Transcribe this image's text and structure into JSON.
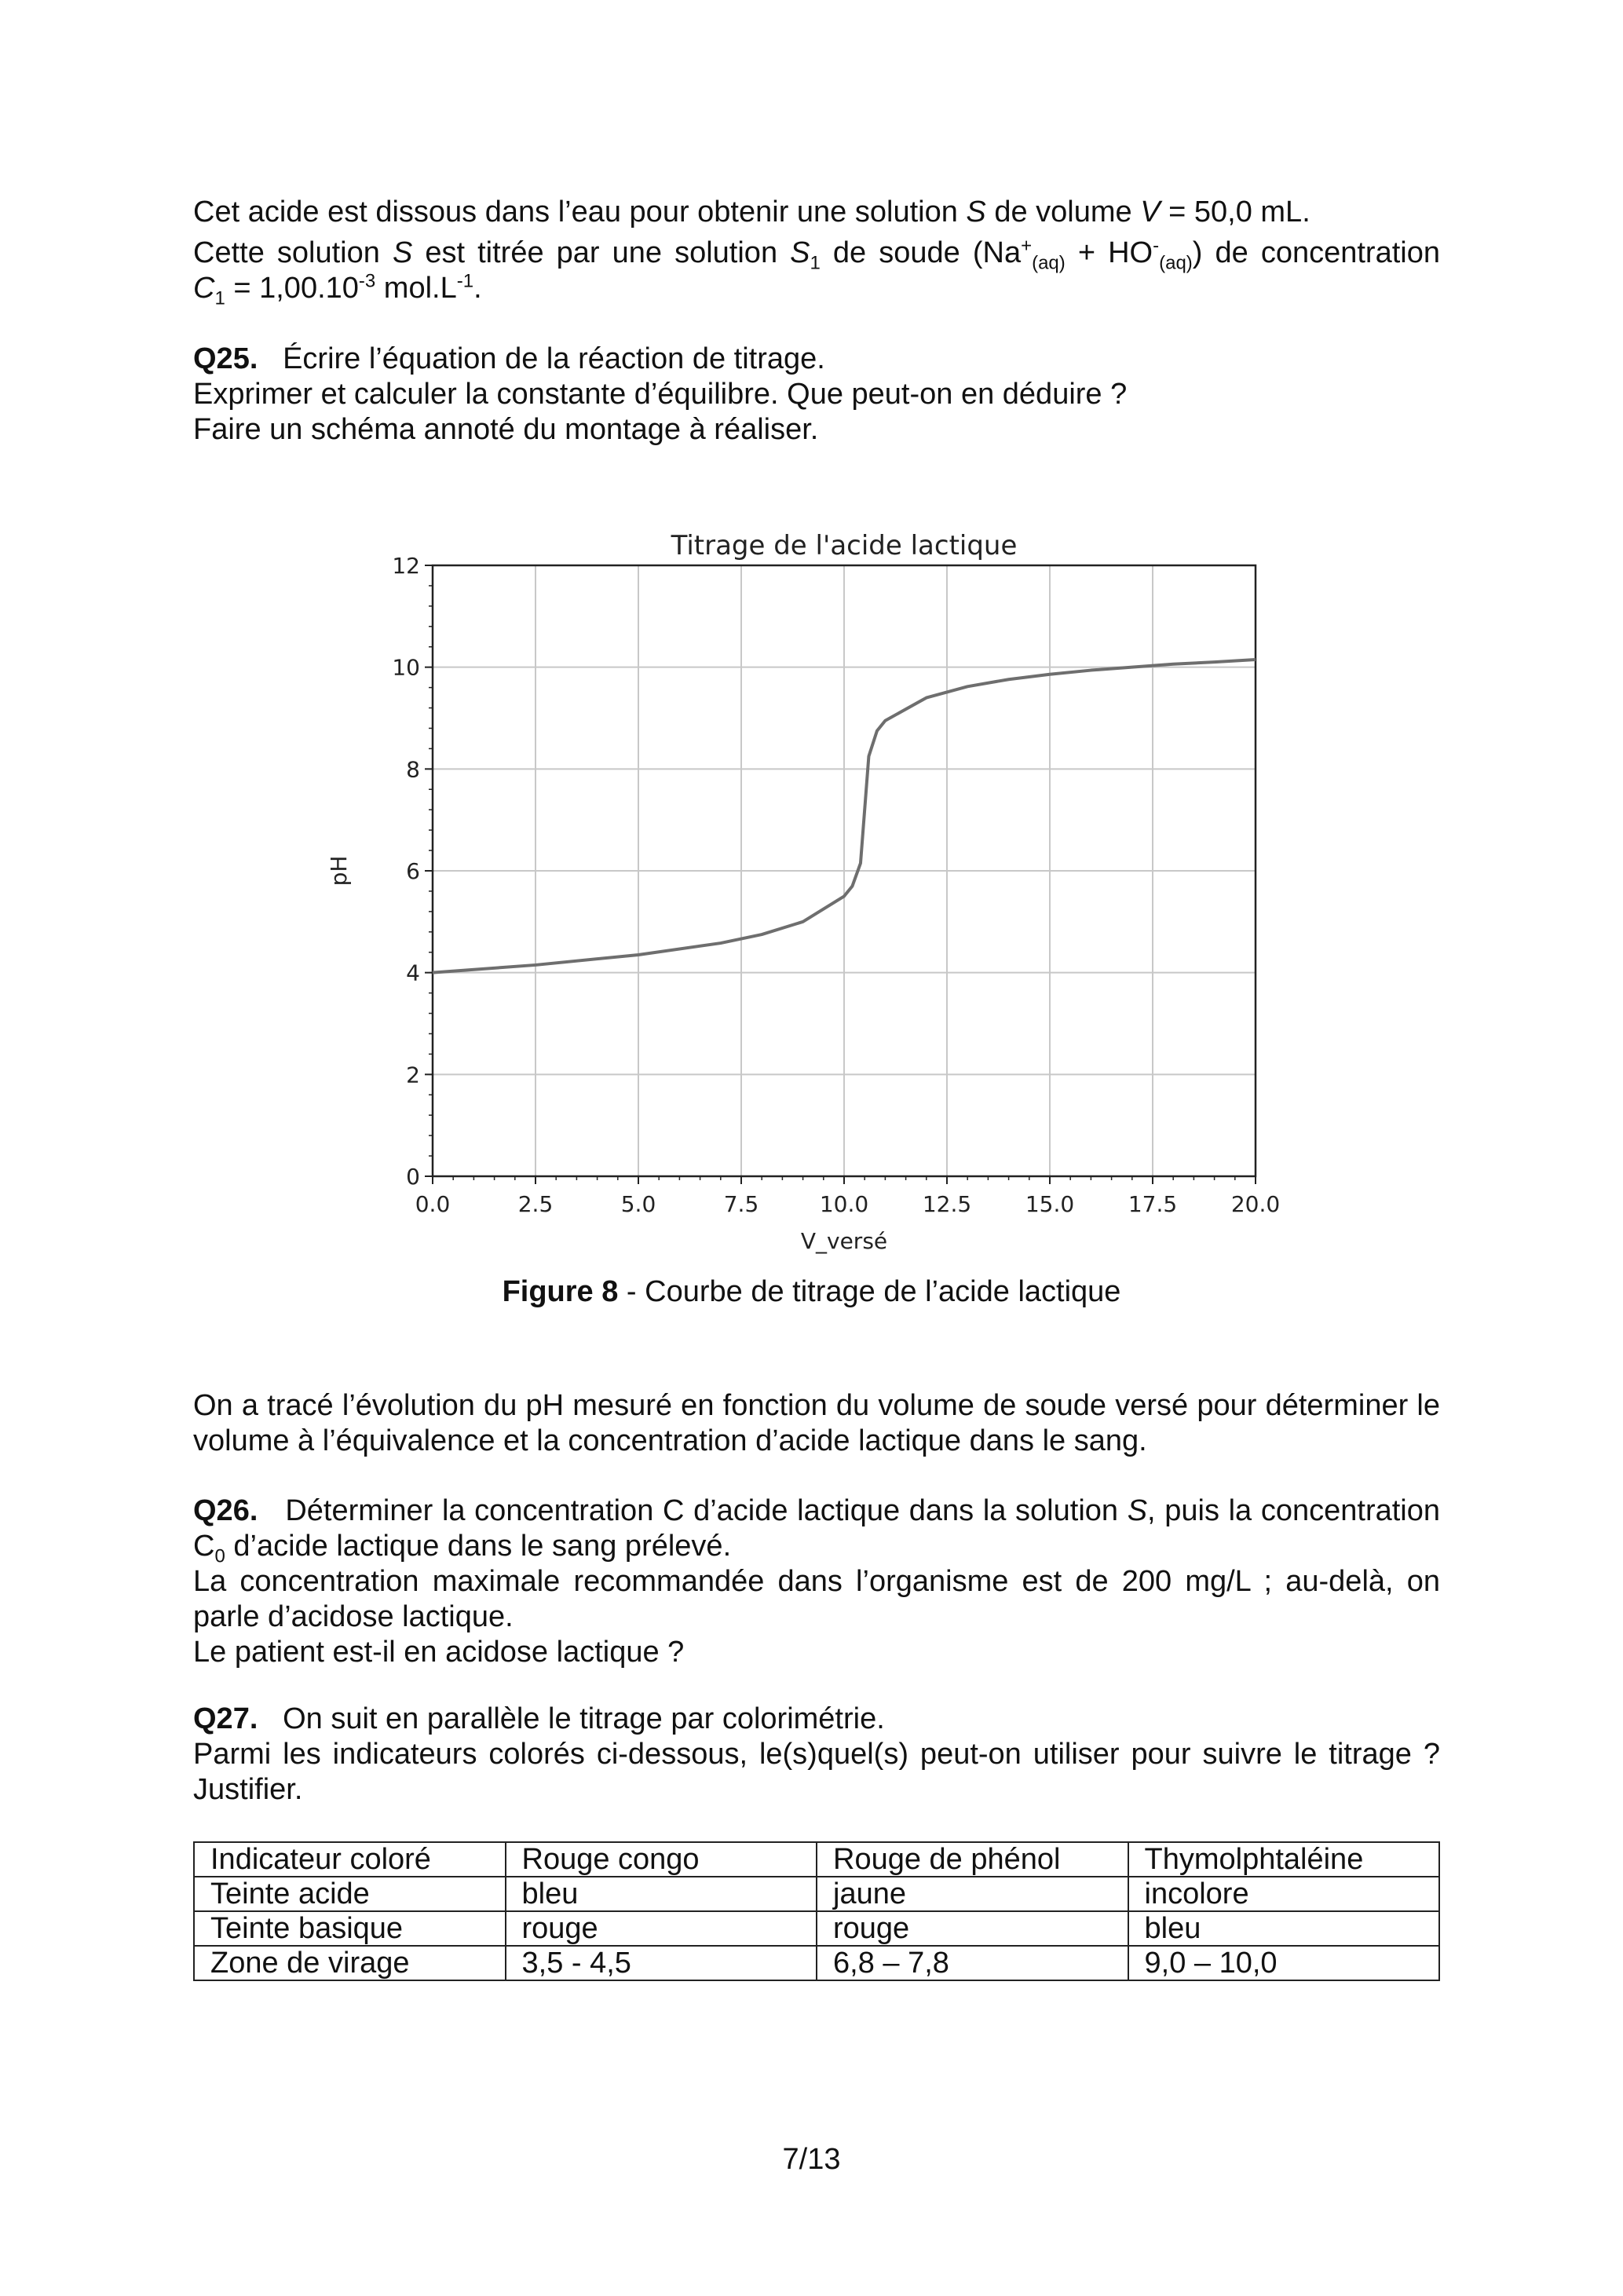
{
  "intro": {
    "line1": [
      "Cet acide est dissous dans l’eau pour obtenir une solution ",
      "S",
      " de volume ",
      "V",
      " = 50,0 mL."
    ],
    "line2": [
      "Cette solution ",
      "S",
      " est titrée par une solution ",
      "S",
      "1",
      " de soude (Na",
      "+",
      "(aq)",
      " + HO",
      "-",
      "(aq)",
      ") de concentration"
    ],
    "line3": [
      "C",
      "1",
      " = 1,00.10",
      "-3",
      " mol.L",
      "-1",
      "."
    ]
  },
  "q25": {
    "label": "Q25.",
    "lines": [
      "Écrire l’équation de la réaction de titrage.",
      "Exprimer et calculer la constante d’équilibre. Que peut-on en déduire ?",
      "Faire un schéma annoté du montage à réaliser."
    ]
  },
  "chart_data": {
    "type": "line",
    "title": "Titrage de l'acide lactique",
    "xlabel": "V_versé",
    "ylabel": "pH",
    "xlim": [
      0,
      20
    ],
    "ylim": [
      0,
      12
    ],
    "xticks": [
      "0.0",
      "2.5",
      "5.0",
      "7.5",
      "10.0",
      "12.5",
      "15.0",
      "17.5",
      "20.0"
    ],
    "yticks": [
      "0",
      "2",
      "4",
      "6",
      "8",
      "10",
      "12"
    ],
    "grid": true,
    "color": "#6e6e6e",
    "x": [
      0,
      2.5,
      5,
      7,
      8,
      9,
      10,
      10.2,
      10.4,
      10.6,
      10.8,
      11,
      12,
      13,
      14,
      15,
      16,
      17,
      18,
      19,
      20
    ],
    "y": [
      4.0,
      4.15,
      4.35,
      4.58,
      4.75,
      5.0,
      5.5,
      5.7,
      6.15,
      8.25,
      8.75,
      8.95,
      9.4,
      9.62,
      9.76,
      9.86,
      9.94,
      10.0,
      10.06,
      10.1,
      10.15
    ]
  },
  "figure": {
    "label": "Figure 8",
    "caption": " - Courbe de titrage de l’acide lactique"
  },
  "para": [
    "On a tracé l’évolution du pH mesuré en fonction du volume de soude versé pour déterminer le",
    "volume à l’équivalence et la concentration d’acide lactique dans le sang."
  ],
  "q26": {
    "label": "Q26.",
    "line1a": "Déterminer la concentration C d’acide lactique dans la solution ",
    "line1b": "S",
    ", puis la concentration": "",
    "line1c": ", puis la concentration",
    "line2": [
      "C",
      "0",
      " d’acide lactique dans le sang prélevé."
    ],
    "line3": "La concentration maximale recommandée dans l’organisme est de 200 mg/L ; au-delà, on",
    "line4": "parle d’acidose lactique.",
    "line5": "Le patient est-il en acidose lactique ?"
  },
  "q27": {
    "label": "Q27.",
    "lines": [
      "On suit en parallèle le titrage par colorimétrie.",
      "Parmi les indicateurs colorés ci-dessous, le(s)quel(s) peut-on utiliser pour suivre le titrage ?",
      "Justifier."
    ]
  },
  "table": [
    [
      "Indicateur coloré",
      "Rouge congo",
      "Rouge de phénol",
      "Thymolphtaléine"
    ],
    [
      "Teinte acide",
      "bleu",
      "jaune",
      "incolore"
    ],
    [
      "Teinte basique",
      "rouge",
      "rouge",
      "bleu"
    ],
    [
      "Zone de virage",
      "3,5 - 4,5",
      "6,8 – 7,8",
      "9,0 – 10,0"
    ]
  ],
  "page_number": "7/13"
}
